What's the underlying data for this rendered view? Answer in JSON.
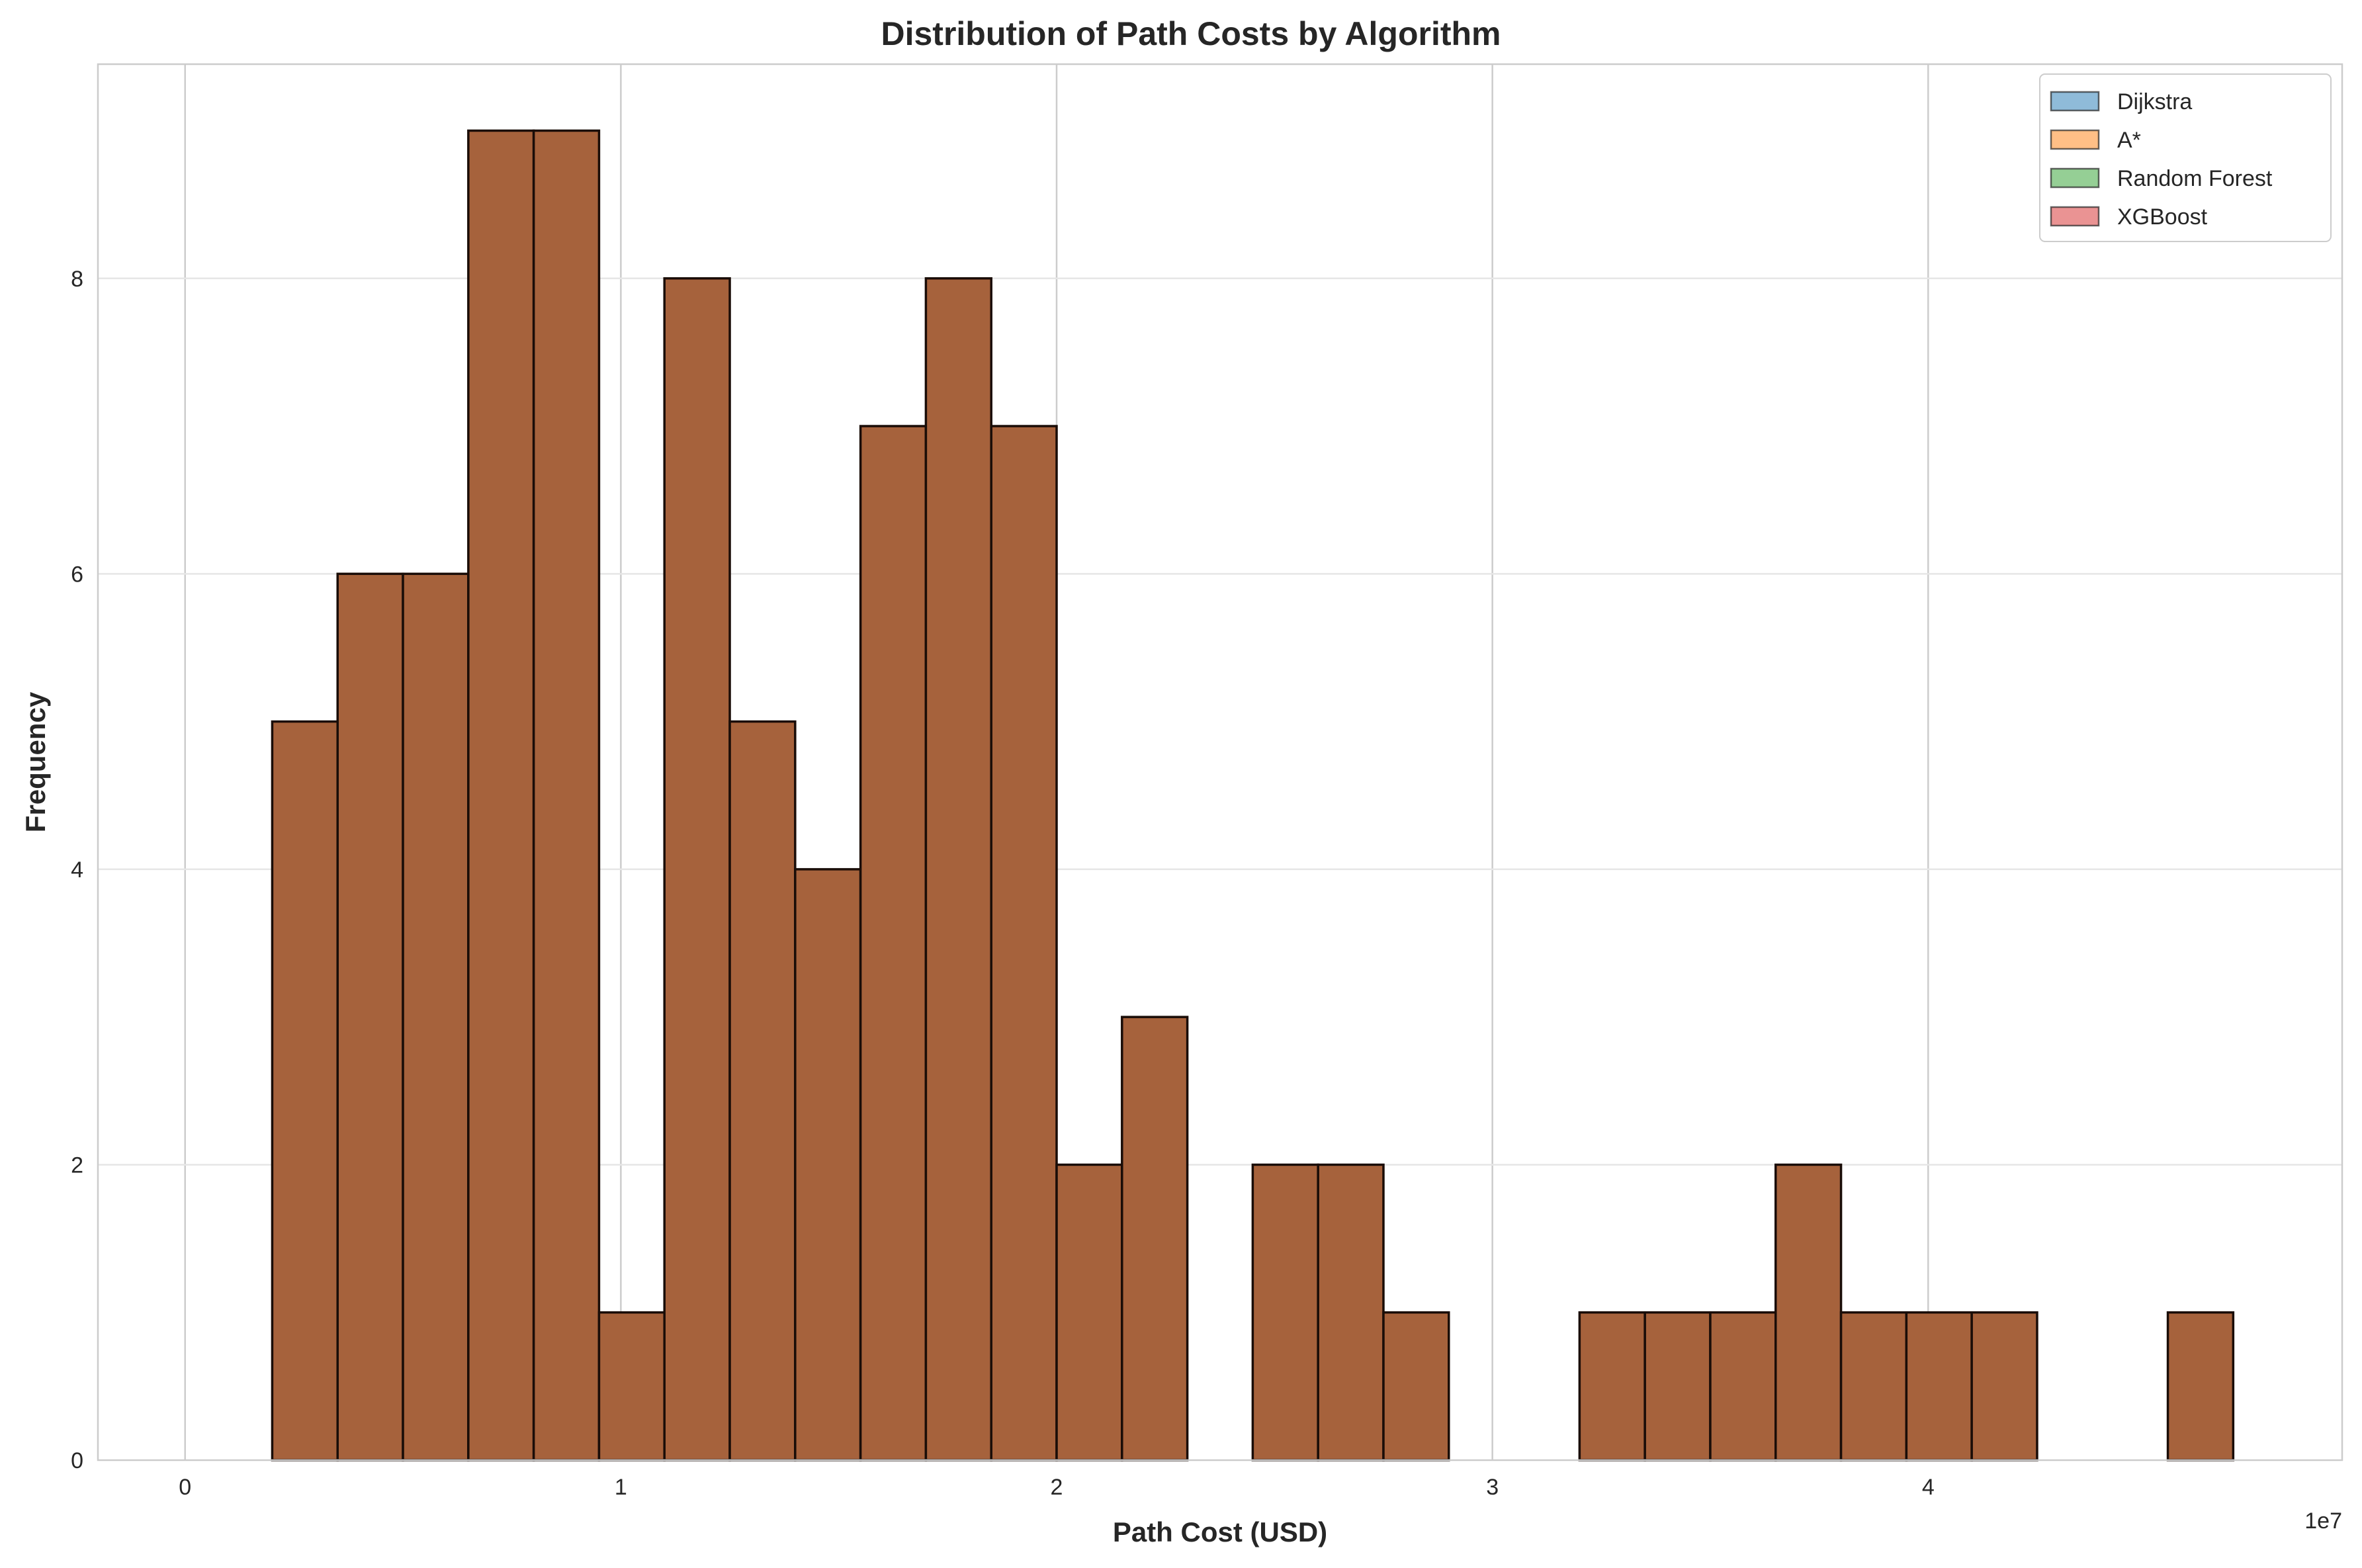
{
  "chart_data": {
    "type": "bar",
    "subtype": "overlaid-histogram",
    "title": "Distribution of Path Costs by Algorithm",
    "xlabel": "Path Cost (USD)",
    "ylabel": "Frequency",
    "x_offset_label": "1e7",
    "xlim": [
      -2000000,
      49500000
    ],
    "ylim": [
      0,
      9.45
    ],
    "x_ticks": [
      0,
      10000000,
      20000000,
      30000000,
      40000000
    ],
    "x_tick_labels": [
      "0",
      "1",
      "2",
      "3",
      "4"
    ],
    "y_ticks": [
      0,
      2,
      4,
      6,
      8
    ],
    "y_tick_labels": [
      "0",
      "2",
      "4",
      "6",
      "8"
    ],
    "grid": true,
    "legend_position": "top-right",
    "bin_start": 2000000,
    "bin_width": 1500000,
    "bar_fill": "#a6623c",
    "bar_edge": "#1a0d08",
    "series": [
      {
        "name": "Dijkstra",
        "color": "#1f77b4"
      },
      {
        "name": "A*",
        "color": "#ff7f0e"
      },
      {
        "name": "Random Forest",
        "color": "#2ca02c"
      },
      {
        "name": "XGBoost",
        "color": "#d62728"
      }
    ],
    "counts": [
      5,
      6,
      6,
      9,
      9,
      1,
      8,
      5,
      4,
      7,
      8,
      7,
      2,
      3,
      0,
      2,
      2,
      1,
      0,
      0,
      1,
      1,
      1,
      2,
      1,
      1,
      1,
      0,
      0,
      1
    ]
  }
}
